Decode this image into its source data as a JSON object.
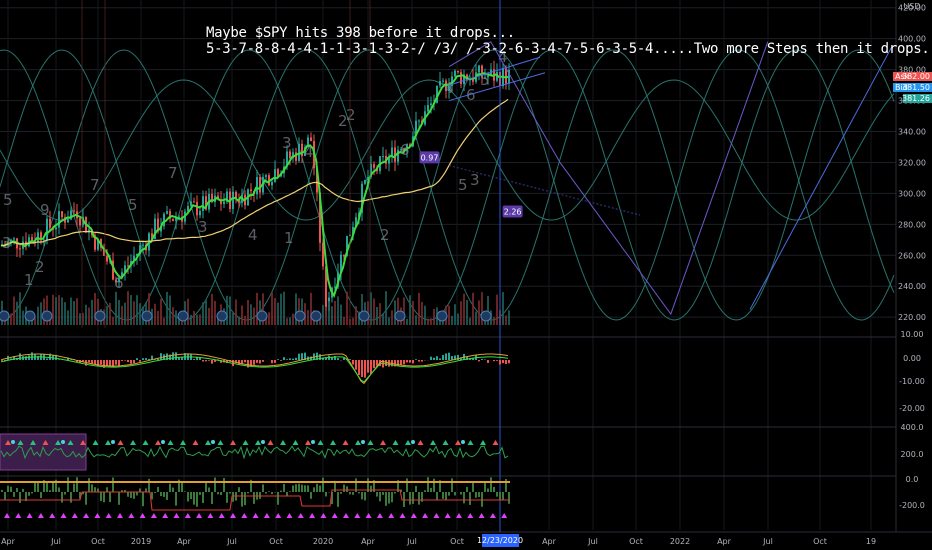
{
  "title_lines": [
    "Maybe $SPY hits 398 before it drops...",
    "5-3-7-8-8-4-4-1-1-3-1-3-2-/ /3/ /-3-2-6-3-4-7-5-6-3-5-4.....Two more Steps then it drops..."
  ],
  "currency": "USD",
  "quotes": {
    "ask": {
      "label": "Ask",
      "value": "382.00",
      "color": "#ef5350"
    },
    "bid": {
      "label": "Bid",
      "value": "381.50",
      "color": "#2196f3"
    },
    "last": {
      "value": "381.26",
      "color": "#26a69a"
    }
  },
  "cursor_date": "12/23/2020",
  "annotations": [
    {
      "text": "0.97",
      "x": "2020-10",
      "y": 322
    },
    {
      "text": "2.26",
      "x": "2021-04",
      "y": 287
    }
  ],
  "chart_data": {
    "type": "line",
    "price_axis": {
      "ticks": [
        "420.00",
        "400.00",
        "380.00",
        "360.00",
        "340.00",
        "320.00",
        "300.00",
        "280.00",
        "260.00",
        "240.00",
        "220.00"
      ],
      "range": [
        213,
        425
      ]
    },
    "osc1_axis": {
      "ticks": [
        "10.00",
        "0.00",
        "-10.00",
        "-20.00"
      ]
    },
    "osc2_axis": {
      "ticks": [
        "400.0",
        "200.0",
        "0.0",
        "-200.0"
      ]
    },
    "x_axis": {
      "ticks": [
        "Apr",
        "Jul",
        "Oct",
        "2019",
        "Apr",
        "Jul",
        "Oct",
        "2020",
        "Apr",
        "Jul",
        "Oct",
        "12/23/2020",
        "Apr",
        "Jul",
        "Oct",
        "2022",
        "Apr",
        "Jul",
        "Oct",
        "19"
      ]
    },
    "series": [
      {
        "color": "#26a69a",
        "x": [
          "2018-03",
          "2018-06",
          "2018-09",
          "2018-12",
          "2019-03",
          "2019-06",
          "2019-09",
          "2019-12",
          "2020-02",
          "2020-03",
          "2020-06",
          "2020-09",
          "2020-12"
        ],
        "y": [
          265,
          272,
          290,
          245,
          281,
          292,
          298,
          320,
          335,
          228,
          310,
          335,
          376
        ]
      }
    ],
    "projection": {
      "x": [
        "2020-12",
        "2021-03",
        "2021-08",
        "2022-04",
        "2022-11"
      ],
      "y": [
        382,
        398,
        320,
        222,
        398
      ]
    },
    "grid": true,
    "legend": "none"
  },
  "colors": {
    "bg": "#000000",
    "grid": "#1c1f26",
    "wave": "#2c7f78",
    "up": "#26a69a",
    "down": "#ef5350",
    "ma": "#f0d070",
    "cursor": "#2962ff",
    "flag": "#5c3aa8"
  }
}
